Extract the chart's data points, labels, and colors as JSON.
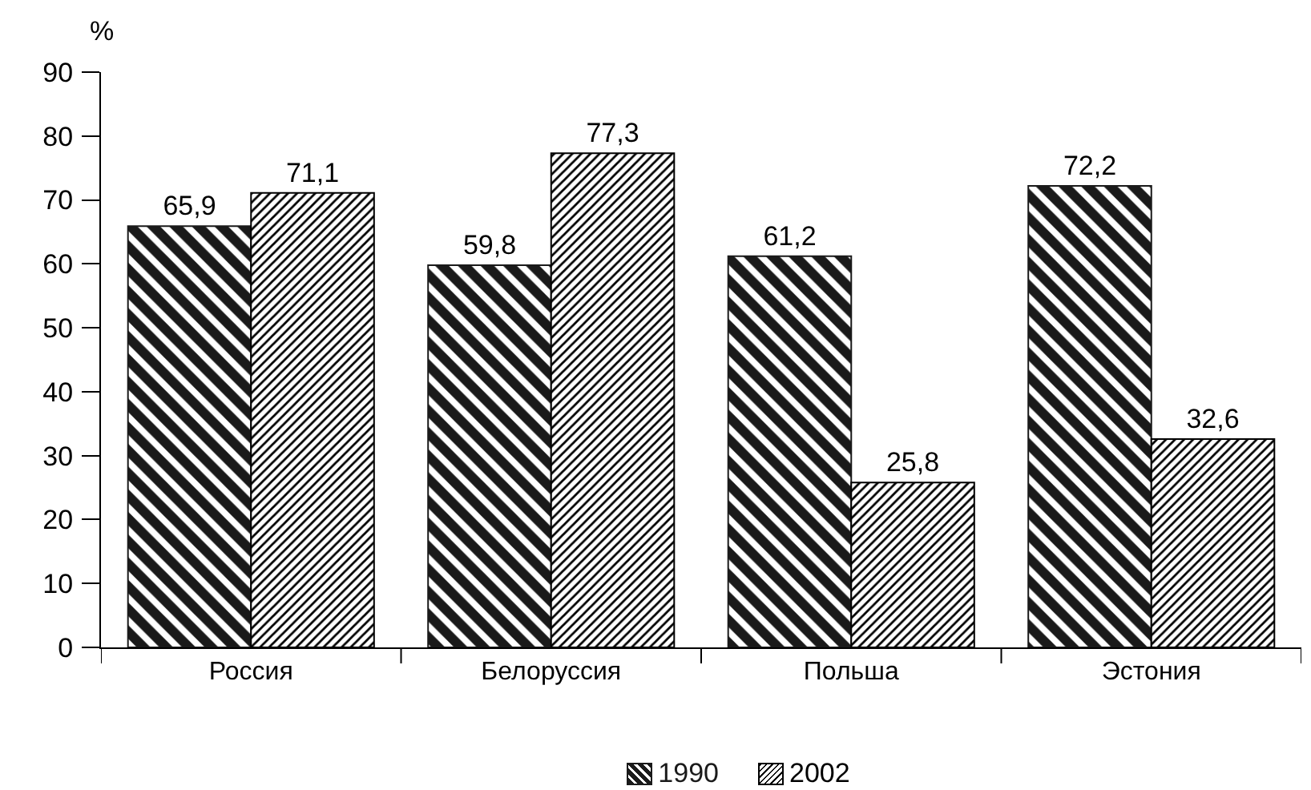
{
  "chart_data": {
    "type": "bar",
    "ylabel": "%",
    "categories": [
      "Россия",
      "Белоруссия",
      "Польша",
      "Эстония"
    ],
    "series": [
      {
        "name": "1990",
        "color": "#1a1a1a",
        "values": [
          65.9,
          59.8,
          61.2,
          72.2
        ],
        "value_labels": [
          "65,9",
          "59,8",
          "61,2",
          "72,2"
        ]
      },
      {
        "name": "2002",
        "color": "#000000",
        "values": [
          71.1,
          77.3,
          25.8,
          32.6
        ],
        "value_labels": [
          "71,1",
          "77,3",
          "25,8",
          "32,6"
        ]
      }
    ],
    "ylim": [
      0,
      90
    ],
    "yticks": [
      0,
      10,
      20,
      30,
      40,
      50,
      60,
      70,
      80,
      90
    ],
    "grid": false,
    "legend": "bottom"
  }
}
